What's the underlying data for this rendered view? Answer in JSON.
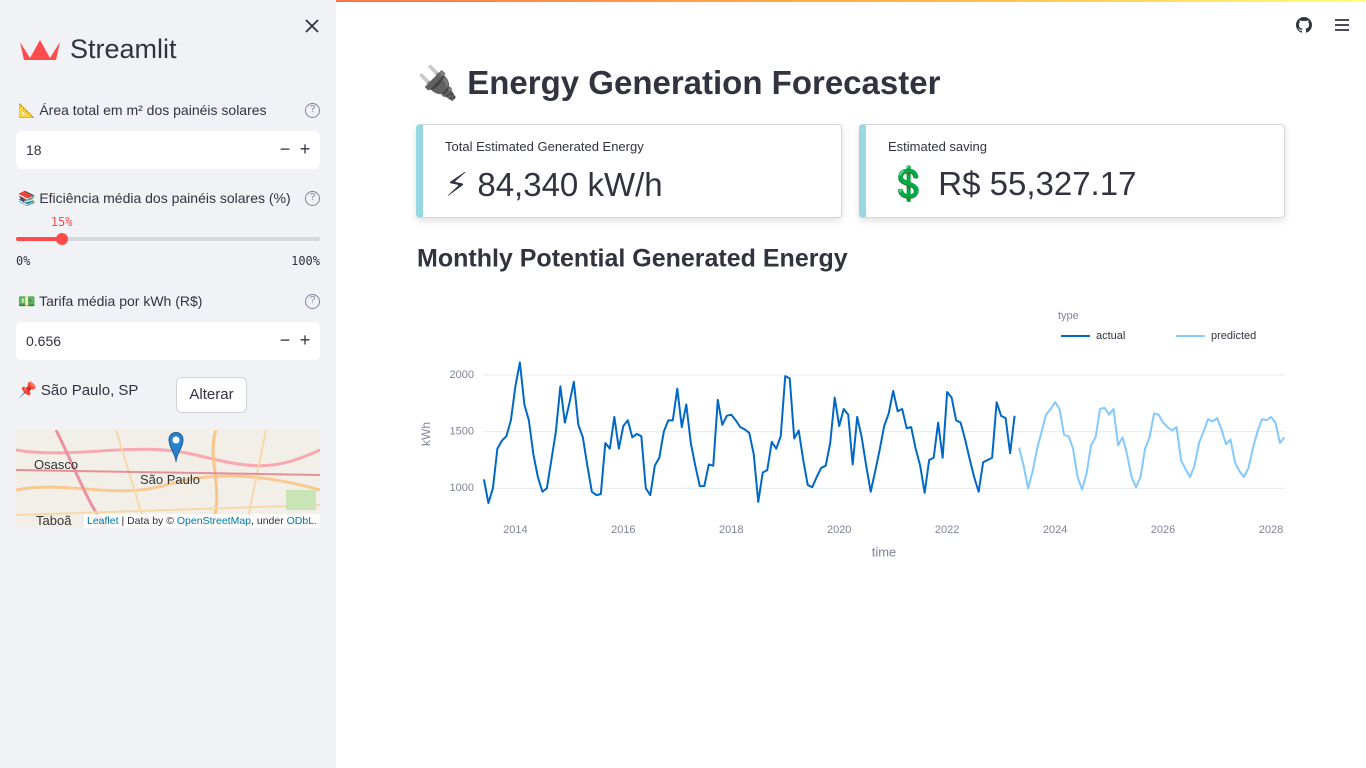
{
  "sidebar": {
    "brand": "Streamlit",
    "area": {
      "label": "📐 Área total em m² dos painéis solares",
      "value": "18"
    },
    "efficiency": {
      "label": "📚 Eficiência média dos painéis solares (%)",
      "value": 15,
      "value_label": "15%",
      "min": {
        "value": 0,
        "label": "0%"
      },
      "max": {
        "value": 100,
        "label": "100%"
      }
    },
    "tariff": {
      "label": "💵 Tarifa média por kWh (R$)",
      "value": "0.656"
    },
    "location": "📌 São Paulo, SP",
    "change_button": "Alterar",
    "map": {
      "labels": [
        "Osasco",
        "São Paulo",
        "Taboã"
      ],
      "attribution": [
        "Leaflet",
        "| Data by ©",
        "OpenStreetMap",
        ", under",
        "ODbL."
      ]
    }
  },
  "main": {
    "title": "🔌 Energy Generation Forecaster",
    "metrics": [
      {
        "label": "Total Estimated Generated Energy",
        "value": "⚡ 84,340 kW/h"
      },
      {
        "label": "Estimated saving",
        "value": "💲 R$ 55,327.17"
      }
    ]
  },
  "chart_data": {
    "type": "line",
    "title": "Monthly Potential Generated Energy",
    "x_label": "time",
    "y_label": "kWh",
    "legend_title": "type",
    "legend": "top-right",
    "grid": true,
    "xlim": [
      2013.4,
      2028.26
    ],
    "xticks": [
      2014,
      2016,
      2018,
      2020,
      2022,
      2024,
      2026,
      2028
    ],
    "ylim": [
      800,
      2150
    ],
    "yticks": [
      1000,
      1500,
      2000
    ],
    "series": [
      {
        "name": "actual",
        "color": "#0068c9",
        "x": [
          "2013-06",
          "2013-07",
          "2013-08",
          "2013-09",
          "2013-10",
          "2013-11",
          "2013-12",
          "2014-01",
          "2014-02",
          "2014-03",
          "2014-04",
          "2014-05",
          "2014-06",
          "2014-07",
          "2014-08",
          "2014-09",
          "2014-10",
          "2014-11",
          "2014-12",
          "2015-01",
          "2015-02",
          "2015-03",
          "2015-04",
          "2015-05",
          "2015-06",
          "2015-07",
          "2015-08",
          "2015-09",
          "2015-10",
          "2015-11",
          "2015-12",
          "2016-01",
          "2016-02",
          "2016-03",
          "2016-04",
          "2016-05",
          "2016-06",
          "2016-07",
          "2016-08",
          "2016-09",
          "2016-10",
          "2016-11",
          "2016-12",
          "2017-01",
          "2017-02",
          "2017-03",
          "2017-04",
          "2017-05",
          "2017-06",
          "2017-07",
          "2017-08",
          "2017-09",
          "2017-10",
          "2017-11",
          "2017-12",
          "2018-01",
          "2018-02",
          "2018-03",
          "2018-04",
          "2018-05",
          "2018-06",
          "2018-07",
          "2018-08",
          "2018-09",
          "2018-10",
          "2018-11",
          "2018-12",
          "2019-01",
          "2019-02",
          "2019-03",
          "2019-04",
          "2019-05",
          "2019-06",
          "2019-07",
          "2019-08",
          "2019-09",
          "2019-10",
          "2019-11",
          "2019-12",
          "2020-01",
          "2020-02",
          "2020-03",
          "2020-04",
          "2020-05",
          "2020-06",
          "2020-07",
          "2020-08",
          "2020-09",
          "2020-10",
          "2020-11",
          "2020-12",
          "2021-01",
          "2021-02",
          "2021-03",
          "2021-04",
          "2021-05",
          "2021-06",
          "2021-07",
          "2021-08",
          "2021-09",
          "2021-10",
          "2021-11",
          "2021-12",
          "2022-01",
          "2022-02",
          "2022-03",
          "2022-04",
          "2022-05",
          "2022-06",
          "2022-07",
          "2022-08",
          "2022-09",
          "2022-10",
          "2022-11",
          "2022-12",
          "2023-01",
          "2023-02",
          "2023-03",
          "2023-04"
        ],
        "values": [
          1080,
          870,
          1000,
          1350,
          1420,
          1460,
          1600,
          1900,
          2110,
          1740,
          1600,
          1300,
          1100,
          970,
          1000,
          1250,
          1500,
          1900,
          1580,
          1750,
          1940,
          1560,
          1450,
          1200,
          970,
          940,
          950,
          1400,
          1350,
          1630,
          1350,
          1550,
          1600,
          1450,
          1480,
          1460,
          1000,
          940,
          1200,
          1270,
          1500,
          1600,
          1600,
          1880,
          1540,
          1740,
          1400,
          1200,
          1020,
          1020,
          1210,
          1200,
          1780,
          1560,
          1640,
          1650,
          1600,
          1540,
          1520,
          1490,
          1300,
          880,
          1140,
          1160,
          1410,
          1350,
          1460,
          1990,
          1970,
          1440,
          1510,
          1250,
          1030,
          1010,
          1100,
          1180,
          1200,
          1400,
          1800,
          1550,
          1700,
          1650,
          1210,
          1630,
          1450,
          1200,
          970,
          1150,
          1340,
          1550,
          1660,
          1860,
          1680,
          1700,
          1530,
          1540,
          1350,
          1200,
          960,
          1250,
          1270,
          1580,
          1270,
          1850,
          1800,
          1600,
          1580,
          1430,
          1260,
          1100,
          970,
          1230,
          1250,
          1270,
          1760,
          1640,
          1620,
          1310,
          1640
        ]
      },
      {
        "name": "predicted",
        "color": "#83c9ff",
        "x": [
          "2023-05",
          "2023-06",
          "2023-07",
          "2023-08",
          "2023-09",
          "2023-10",
          "2023-11",
          "2023-12",
          "2024-01",
          "2024-02",
          "2024-03",
          "2024-04",
          "2024-05",
          "2024-06",
          "2024-07",
          "2024-08",
          "2024-09",
          "2024-10",
          "2024-11",
          "2024-12",
          "2025-01",
          "2025-02",
          "2025-03",
          "2025-04",
          "2025-05",
          "2025-06",
          "2025-07",
          "2025-08",
          "2025-09",
          "2025-10",
          "2025-11",
          "2025-12",
          "2026-01",
          "2026-02",
          "2026-03",
          "2026-04",
          "2026-05",
          "2026-06",
          "2026-07",
          "2026-08",
          "2026-09",
          "2026-10",
          "2026-11",
          "2026-12",
          "2027-01",
          "2027-02",
          "2027-03",
          "2027-04",
          "2027-05",
          "2027-06",
          "2027-07",
          "2027-08",
          "2027-09",
          "2027-10",
          "2027-11",
          "2027-12",
          "2028-01",
          "2028-02",
          "2028-03",
          "2028-04"
        ],
        "values": [
          1360,
          1200,
          1000,
          1150,
          1350,
          1500,
          1650,
          1700,
          1760,
          1700,
          1470,
          1460,
          1350,
          1100,
          990,
          1130,
          1380,
          1450,
          1700,
          1710,
          1650,
          1700,
          1380,
          1450,
          1300,
          1100,
          1010,
          1100,
          1350,
          1450,
          1660,
          1650,
          1580,
          1540,
          1510,
          1540,
          1250,
          1170,
          1100,
          1200,
          1400,
          1500,
          1610,
          1590,
          1620,
          1520,
          1390,
          1430,
          1230,
          1150,
          1100,
          1180,
          1360,
          1500,
          1610,
          1600,
          1630,
          1580,
          1400,
          1450
        ]
      }
    ]
  }
}
